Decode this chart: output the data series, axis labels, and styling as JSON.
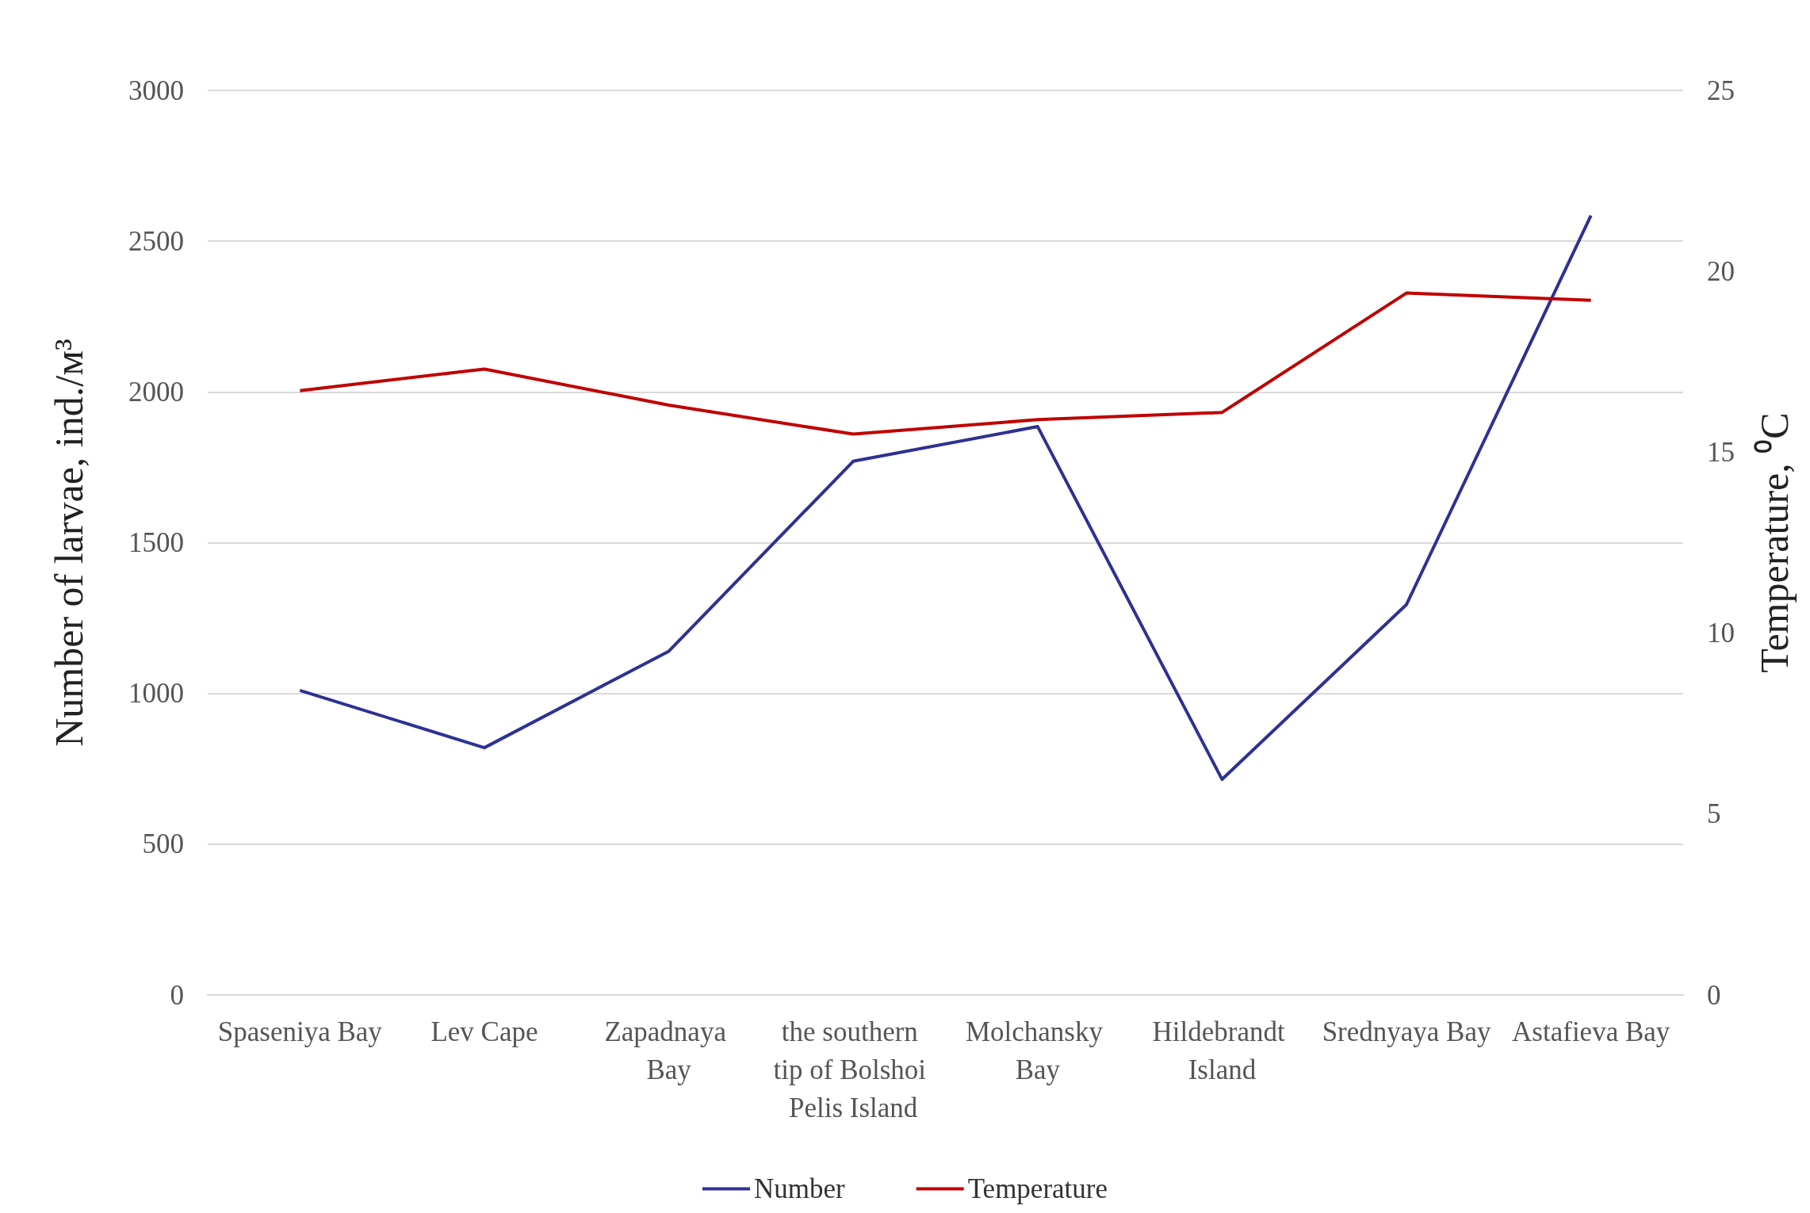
{
  "chart_data": {
    "type": "line",
    "categories": [
      "Spaseniya Bay",
      "Lev Cape",
      "Zapadnaya Bay",
      "the southern tip of Bolshoi Pelis Island",
      "Molchansky Bay",
      "Hildebrandt Island",
      "Srednyaya Bay",
      "Astafieva Bay"
    ],
    "ylabel": "Number of larvae, ind./м³",
    "y2label": "Temperature, ⁰C",
    "ylim": [
      0,
      3000
    ],
    "yticks": [
      0,
      500,
      1000,
      1500,
      2000,
      2500,
      3000
    ],
    "y2lim": [
      0,
      25
    ],
    "y2ticks": [
      0,
      5,
      10,
      15,
      20,
      25
    ],
    "series": [
      {
        "name": "Number",
        "color": "#2e3192",
        "values": [
          1010,
          820,
          1140,
          1770,
          1885,
          715,
          1295,
          2585
        ]
      },
      {
        "name": "Temperature",
        "color": "#c00000",
        "axis": "y2",
        "values": [
          16.7,
          17.3,
          16.3,
          15.5,
          15.9,
          16.1,
          19.4,
          19.2
        ]
      }
    ],
    "grid": "y",
    "legend": "bottom",
    "marker": "none",
    "line_style": "solid"
  }
}
